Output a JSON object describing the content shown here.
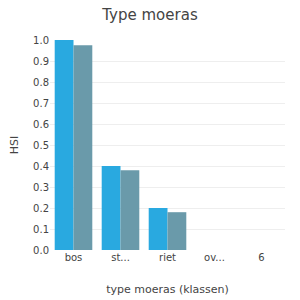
{
  "chart_data": {
    "type": "bar",
    "title": "Type moeras",
    "xlabel": "type moeras (klassen)",
    "ylabel": "HSI",
    "categories": [
      "bos",
      "st...",
      "riet",
      "ov...",
      "6"
    ],
    "series": [
      {
        "color": "#29a9e0",
        "values": [
          1.0,
          0.4,
          0.2,
          0.0,
          0.0
        ]
      },
      {
        "color": "#6a9aaa",
        "values": [
          0.975,
          0.38,
          0.18,
          0.0,
          0.0
        ]
      }
    ],
    "ylim": [
      0.0,
      1.0
    ],
    "yticks": [
      {
        "value": 0.0,
        "label": "0.0"
      },
      0.1,
      0.2,
      0.3,
      0.4,
      0.5,
      0.6,
      0.7,
      0.8,
      0.9,
      {
        "value": 1.0,
        "label": "1.0"
      }
    ],
    "grid": true
  }
}
